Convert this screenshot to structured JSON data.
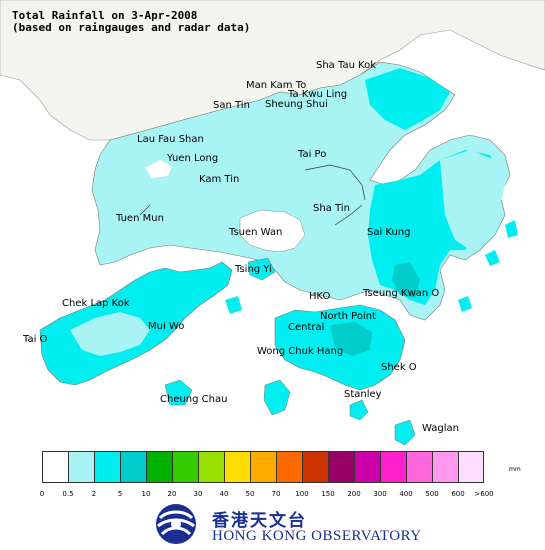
{
  "title": {
    "line1": "Total Rainfall on 3-Apr-2008",
    "line2": "(based on raingauges and radar data)"
  },
  "places": [
    {
      "id": "sha-tau-kok",
      "label": "Sha Tau Kok"
    },
    {
      "id": "man-kam-to",
      "label": "Man Kam To"
    },
    {
      "id": "ta-kwu-ling",
      "label": "Ta Kwu Ling"
    },
    {
      "id": "sheung-shui",
      "label": "Sheung Shui"
    },
    {
      "id": "san-tin",
      "label": "San Tin"
    },
    {
      "id": "lau-fau-shan",
      "label": "Lau Fau Shan"
    },
    {
      "id": "yuen-long",
      "label": "Yuen Long"
    },
    {
      "id": "tai-po",
      "label": "Tai Po"
    },
    {
      "id": "kam-tin",
      "label": "Kam Tin"
    },
    {
      "id": "sha-tin",
      "label": "Sha Tin"
    },
    {
      "id": "tuen-mun",
      "label": "Tuen Mun"
    },
    {
      "id": "tsuen-wan",
      "label": "Tsuen Wan"
    },
    {
      "id": "sai-kung",
      "label": "Sai Kung"
    },
    {
      "id": "tsing-yi",
      "label": "Tsing Yi"
    },
    {
      "id": "chek-lap-kok",
      "label": "Chek Lap Kok"
    },
    {
      "id": "hko",
      "label": "HKO"
    },
    {
      "id": "tseung-kwan-o",
      "label": "Tseung Kwan O"
    },
    {
      "id": "north-point",
      "label": "North Point"
    },
    {
      "id": "central",
      "label": "Central"
    },
    {
      "id": "mui-wo",
      "label": "Mui Wo"
    },
    {
      "id": "tai-o",
      "label": "Tai O"
    },
    {
      "id": "wong-chuk-hang",
      "label": "Wong Chuk Hang"
    },
    {
      "id": "shek-o",
      "label": "Shek O"
    },
    {
      "id": "stanley",
      "label": "Stanley"
    },
    {
      "id": "cheung-chau",
      "label": "Cheung Chau"
    },
    {
      "id": "waglan",
      "label": "Waglan"
    }
  ],
  "legend": {
    "unit": "mm",
    "colors": [
      "#ffffff",
      "#a8f4f4",
      "#00eef0",
      "#00cccc",
      "#00b200",
      "#33cc00",
      "#99e000",
      "#ffdd00",
      "#ffaa00",
      "#ff6a00",
      "#cc3300",
      "#990066",
      "#cc00aa",
      "#ff22cc",
      "#ff66dd",
      "#ff99ee",
      "#ffddff"
    ],
    "ticks": [
      "0",
      "0.5",
      "2",
      "5",
      "10",
      "20",
      "30",
      "40",
      "50",
      "70",
      "100",
      "150",
      "200",
      "300",
      "400",
      "500",
      "600",
      ">600"
    ]
  },
  "organization": {
    "name_cn": "香港天文台",
    "name_en": "HONG KONG OBSERVATORY"
  }
}
